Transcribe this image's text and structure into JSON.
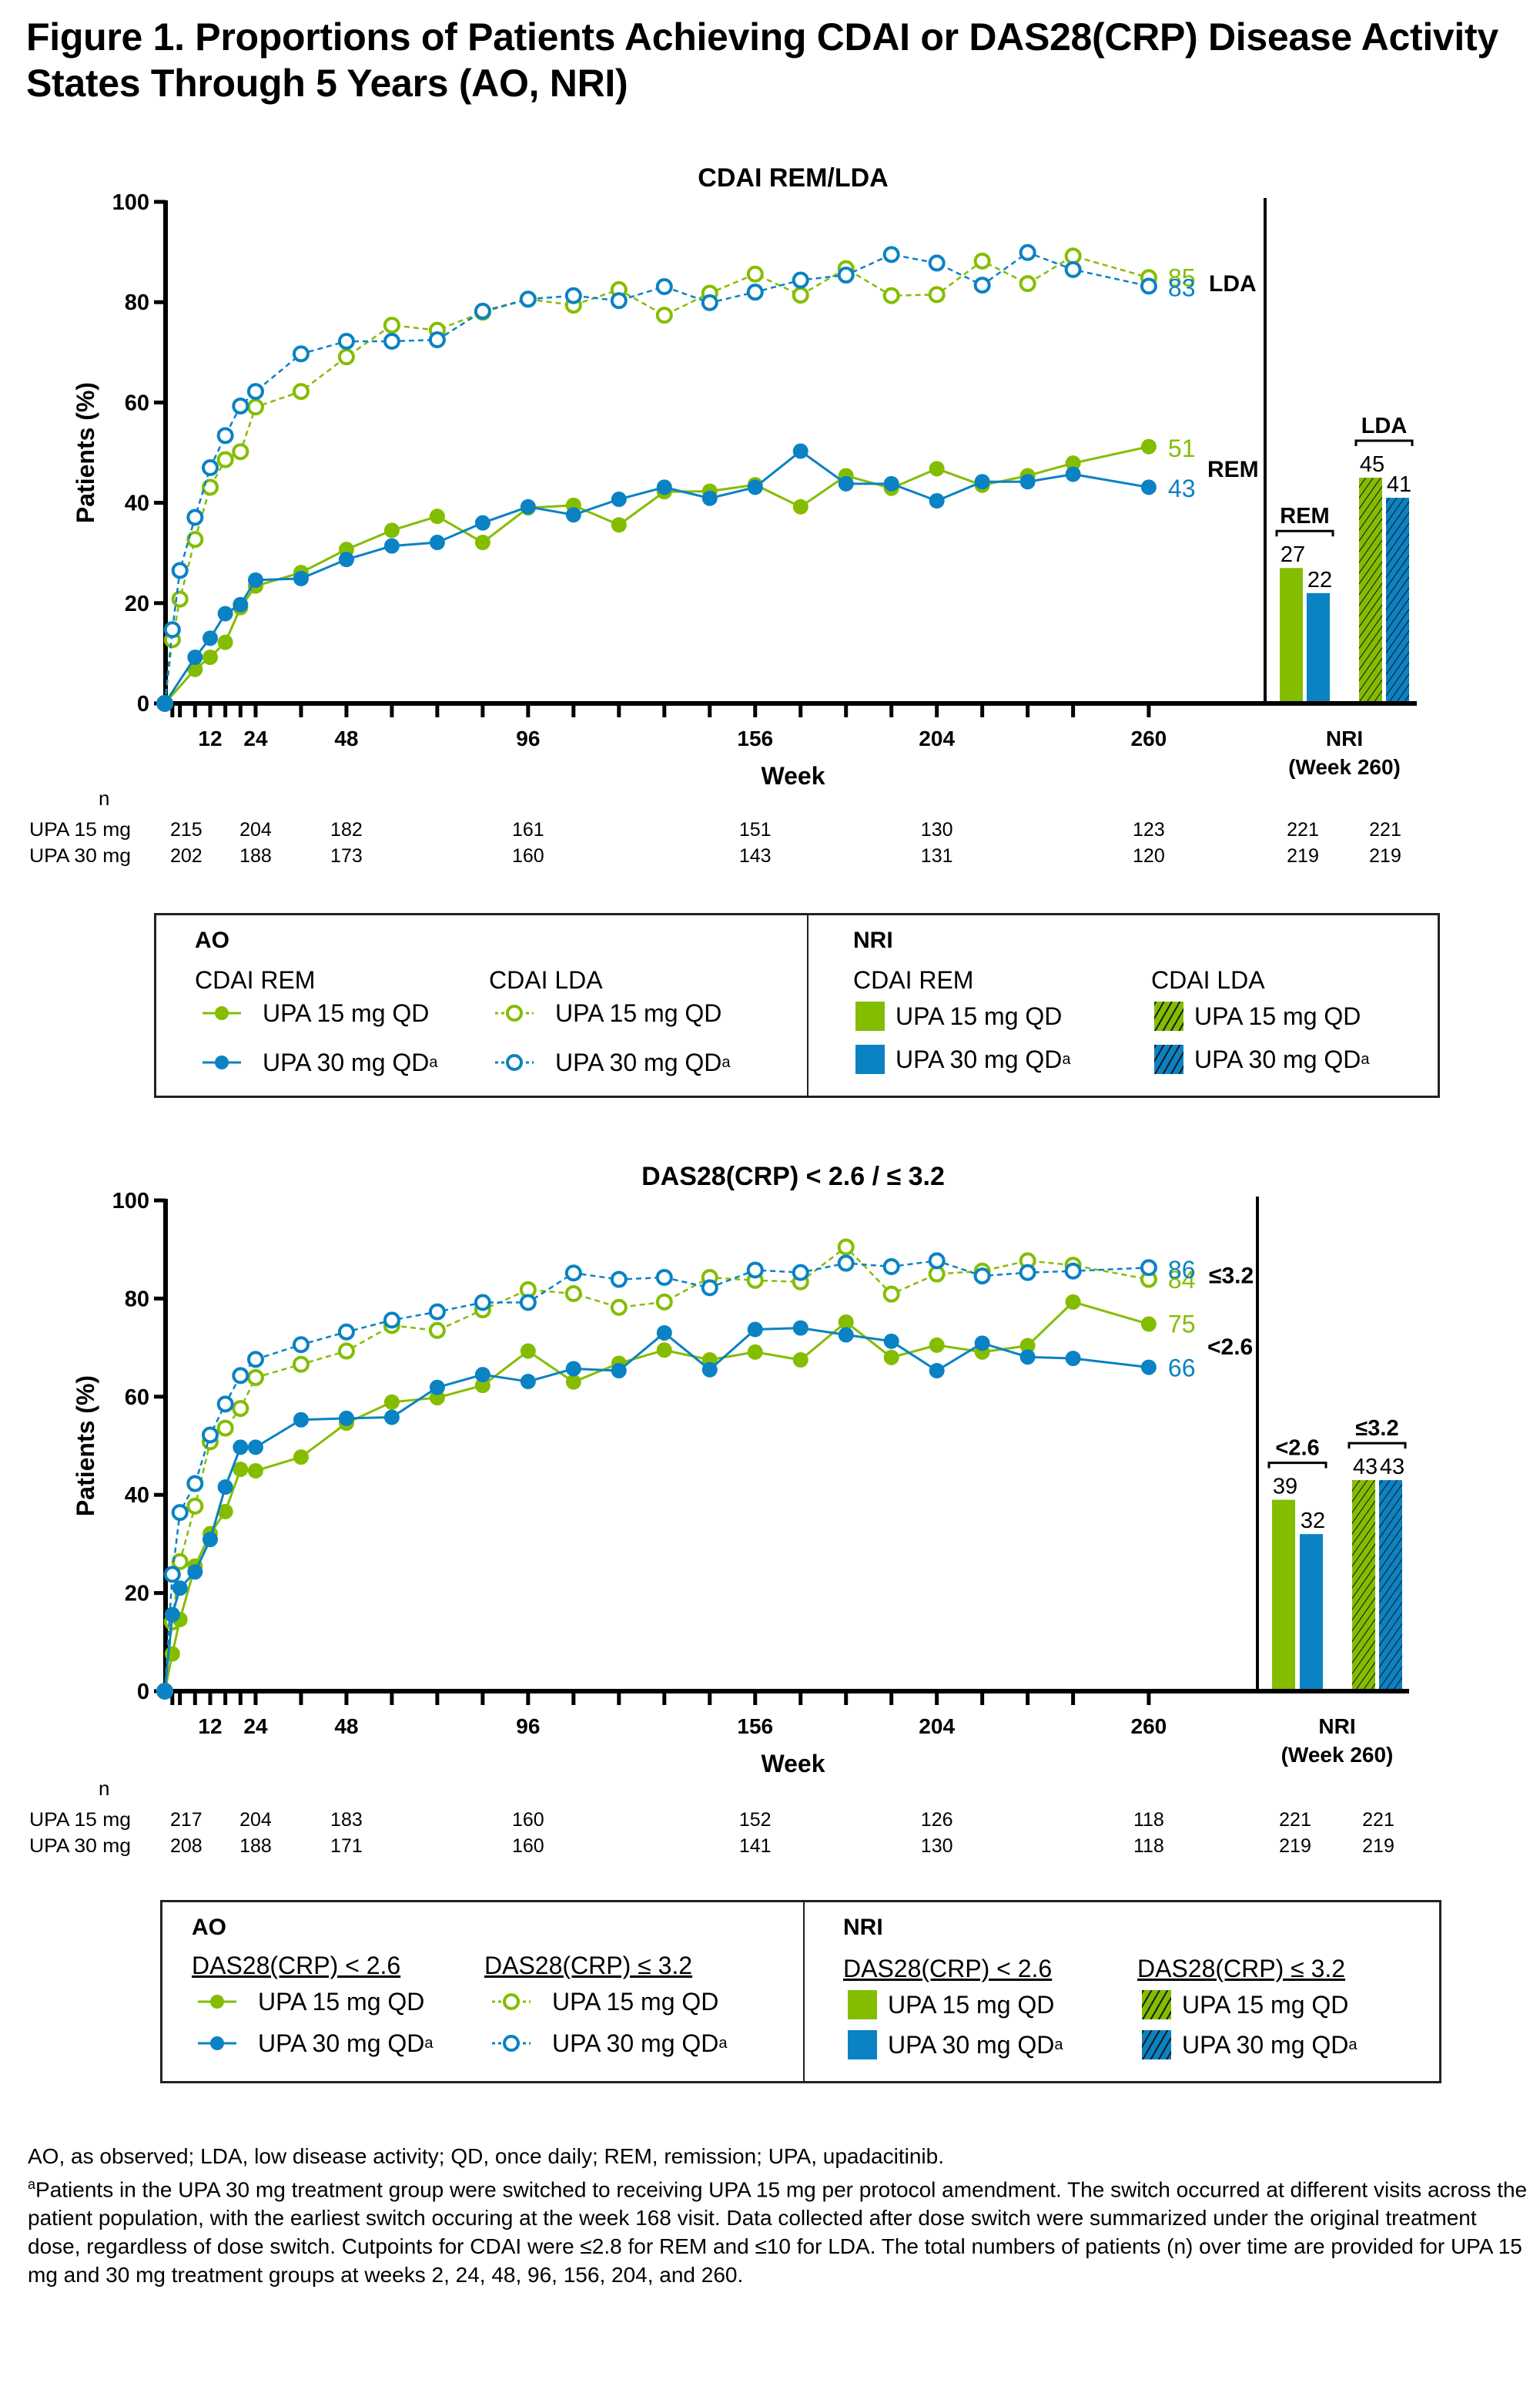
{
  "figure_title": "Figure 1. Proportions of Patients Achieving CDAI or DAS28(CRP) Disease Activity States Through 5 Years (AO, NRI)",
  "colors": {
    "upa15": "#84BD00",
    "upa30": "#0A82C3",
    "axis": "#000000"
  },
  "chart_data": [
    {
      "type": "line",
      "title": "CDAI REM/LDA",
      "xlabel": "Week",
      "ylabel": "Patients (%)",
      "ylim": [
        0,
        100
      ],
      "yticks": [
        "0",
        "20",
        "40",
        "60",
        "80",
        "100"
      ],
      "xticks": [
        12,
        24,
        48,
        96,
        156,
        204,
        260
      ],
      "xlim": [
        0,
        260
      ],
      "grid": false,
      "x": [
        0,
        2,
        4,
        8,
        12,
        16,
        20,
        24,
        36,
        48,
        60,
        72,
        84,
        96,
        108,
        120,
        132,
        144,
        156,
        168,
        180,
        192,
        204,
        216,
        228,
        240,
        260
      ],
      "series": [
        {
          "name": "CDAI LDA UPA 15 mg QD",
          "group": "LDA",
          "dose": "upa15",
          "style": "dashed-open",
          "values": [
            0,
            12.7,
            20.8,
            32.7,
            43.1,
            48.6,
            50.2,
            59.1,
            62.2,
            69.1,
            75.4,
            74.4,
            78.0,
            80.6,
            79.4,
            82.5,
            77.4,
            81.8,
            85.6,
            81.4,
            86.7,
            81.3,
            81.5,
            88.2,
            83.7,
            89.2,
            84.9
          ],
          "end_label": "85"
        },
        {
          "name": "CDAI LDA UPA 30 mg QD",
          "group": "LDA",
          "dose": "upa30",
          "style": "dashed-open",
          "values": [
            0,
            14.7,
            26.5,
            37.1,
            47.0,
            53.4,
            59.3,
            62.2,
            69.7,
            72.2,
            72.2,
            72.5,
            78.2,
            80.6,
            81.3,
            80.3,
            83.1,
            79.9,
            82.0,
            84.4,
            85.4,
            89.5,
            87.8,
            83.4,
            89.9,
            86.5,
            83.2
          ],
          "end_label": "83"
        },
        {
          "name": "CDAI REM UPA 15 mg QD",
          "group": "REM",
          "dose": "upa15",
          "style": "solid-filled",
          "values": [
            0,
            null,
            null,
            6.8,
            9.2,
            12.2,
            19.1,
            23.4,
            26.1,
            30.7,
            34.5,
            37.3,
            32.1,
            39.0,
            39.5,
            35.6,
            42.2,
            42.3,
            43.6,
            39.2,
            45.4,
            42.9,
            46.8,
            43.5,
            45.4,
            47.9,
            51.2
          ],
          "end_label": "51"
        },
        {
          "name": "CDAI REM UPA 30 mg QD",
          "group": "REM",
          "dose": "upa30",
          "style": "solid-filled",
          "values": [
            0,
            null,
            null,
            9.2,
            13.0,
            17.9,
            19.7,
            24.6,
            24.9,
            28.7,
            31.4,
            32.1,
            36.0,
            39.2,
            37.6,
            40.7,
            43.1,
            40.9,
            43.1,
            50.3,
            43.8,
            43.8,
            40.4,
            44.2,
            44.2,
            45.7,
            43.1
          ],
          "end_label": "43"
        }
      ],
      "group_labels": {
        "upper": "LDA",
        "lower": "REM"
      },
      "nri": {
        "label": "NRI",
        "sublabel": "(Week 260)",
        "groups": [
          {
            "label": "REM",
            "bars": [
              {
                "dose": "upa15",
                "value": 27,
                "hatched": false
              },
              {
                "dose": "upa30",
                "value": 22,
                "hatched": false
              }
            ]
          },
          {
            "label": "LDA",
            "bars": [
              {
                "dose": "upa15",
                "value": 45,
                "hatched": true
              },
              {
                "dose": "upa30",
                "value": 41,
                "hatched": true
              }
            ]
          }
        ]
      },
      "n_table": {
        "header": "n",
        "weeks": [
          2,
          24,
          48,
          96,
          156,
          204,
          260
        ],
        "rows": [
          {
            "label": "UPA 15 mg",
            "values": [
              "215",
              "204",
              "182",
              "161",
              "151",
              "130",
              "123"
            ],
            "nri": [
              "221",
              "221"
            ]
          },
          {
            "label": "UPA 30 mg",
            "values": [
              "202",
              "188",
              "173",
              "160",
              "143",
              "131",
              "120"
            ],
            "nri": [
              "219",
              "219"
            ]
          }
        ]
      },
      "legend": {
        "ao_title": "AO",
        "nri_title": "NRI",
        "ao_col1": "CDAI REM",
        "ao_col2": "CDAI LDA",
        "nri_col1": "CDAI REM",
        "nri_col2": "CDAI LDA",
        "upa15": "UPA 15 mg QD",
        "upa30": "UPA 30 mg QD",
        "upa30_sup": "a",
        "underline": false
      }
    },
    {
      "type": "line",
      "title": "DAS28(CRP) < 2.6 / ≤ 3.2",
      "xlabel": "Week",
      "ylabel": "Patients (%)",
      "ylim": [
        0,
        100
      ],
      "yticks": [
        "0",
        "20",
        "40",
        "60",
        "80",
        "100"
      ],
      "xticks": [
        12,
        24,
        48,
        96,
        156,
        204,
        260
      ],
      "xlim": [
        0,
        260
      ],
      "grid": false,
      "x": [
        0,
        2,
        4,
        8,
        12,
        16,
        20,
        24,
        36,
        48,
        60,
        72,
        84,
        96,
        108,
        120,
        132,
        144,
        156,
        168,
        180,
        192,
        204,
        216,
        228,
        240,
        260
      ],
      "series": [
        {
          "name": "DAS28(CRP) ≤ 3.2 UPA 15 mg QD",
          "group": "le3.2",
          "dose": "upa15",
          "style": "dashed-open",
          "values": [
            0,
            14.1,
            26.4,
            37.7,
            50.8,
            53.6,
            57.6,
            63.9,
            66.6,
            69.3,
            74.5,
            73.5,
            77.7,
            81.8,
            81.0,
            78.2,
            79.3,
            84.3,
            83.7,
            83.4,
            90.5,
            80.9,
            85.0,
            85.6,
            87.7,
            86.8,
            83.9
          ],
          "end_label": "84"
        },
        {
          "name": "DAS28(CRP) ≤ 3.2 UPA 30 mg QD",
          "group": "le3.2",
          "dose": "upa30",
          "style": "dashed-open",
          "values": [
            0,
            23.8,
            36.4,
            42.3,
            52.2,
            58.5,
            64.3,
            67.6,
            70.6,
            73.2,
            75.6,
            77.3,
            79.2,
            79.2,
            85.2,
            83.9,
            84.3,
            82.2,
            85.8,
            85.3,
            87.2,
            86.5,
            87.7,
            84.6,
            85.3,
            85.6,
            86.3
          ],
          "end_label": "86"
        },
        {
          "name": "DAS28(CRP) < 2.6 UPA 15 mg QD",
          "group": "lt2.6",
          "dose": "upa15",
          "style": "solid-filled",
          "values": [
            0,
            7.6,
            14.6,
            25.5,
            32.1,
            36.6,
            45.2,
            44.9,
            47.7,
            54.6,
            58.9,
            59.8,
            62.3,
            69.3,
            63.0,
            66.8,
            69.5,
            67.5,
            69.1,
            67.5,
            75.2,
            68.0,
            70.5,
            69.1,
            70.4,
            79.3,
            74.8
          ],
          "end_label": "75"
        },
        {
          "name": "DAS28(CRP) < 2.6 UPA 30 mg QD",
          "group": "lt2.6",
          "dose": "upa30",
          "style": "solid-filled",
          "values": [
            0,
            15.6,
            21.0,
            24.3,
            30.9,
            41.6,
            49.7,
            49.7,
            55.3,
            55.6,
            55.8,
            61.9,
            64.5,
            63.1,
            65.7,
            65.3,
            73.0,
            65.5,
            73.7,
            74.0,
            72.6,
            71.3,
            65.3,
            70.9,
            68.1,
            67.8,
            66.0
          ],
          "end_label": "66"
        }
      ],
      "group_labels": {
        "upper": "≤3.2",
        "lower": "<2.6"
      },
      "nri": {
        "label": "NRI",
        "sublabel": "(Week 260)",
        "groups": [
          {
            "label": "<2.6",
            "bars": [
              {
                "dose": "upa15",
                "value": 39,
                "hatched": false
              },
              {
                "dose": "upa30",
                "value": 32,
                "hatched": false
              }
            ]
          },
          {
            "label": "≤3.2",
            "bars": [
              {
                "dose": "upa15",
                "value": 43,
                "hatched": true
              },
              {
                "dose": "upa30",
                "value": 43,
                "hatched": true
              }
            ]
          }
        ]
      },
      "n_table": {
        "header": "n",
        "weeks": [
          2,
          24,
          48,
          96,
          156,
          204,
          260
        ],
        "rows": [
          {
            "label": "UPA 15 mg",
            "values": [
              "217",
              "204",
              "183",
              "160",
              "152",
              "126",
              "118"
            ],
            "nri": [
              "221",
              "221"
            ]
          },
          {
            "label": "UPA 30 mg",
            "values": [
              "208",
              "188",
              "171",
              "160",
              "141",
              "130",
              "118"
            ],
            "nri": [
              "219",
              "219"
            ]
          }
        ]
      },
      "legend": {
        "ao_title": "AO",
        "nri_title": "NRI",
        "ao_col1": "DAS28(CRP) < 2.6",
        "ao_col2": "DAS28(CRP) ≤ 3.2",
        "nri_col1": "DAS28(CRP) < 2.6",
        "nri_col2": "DAS28(CRP) ≤ 3.2",
        "upa15": "UPA 15 mg QD",
        "upa30": "UPA 30 mg QD",
        "upa30_sup": "a",
        "underline": true
      }
    }
  ],
  "footnotes": {
    "abbreviations": "AO, as observed; LDA, low disease activity; QD, once daily; REM, remission; UPA, upadacitinib.",
    "note_marker": "a",
    "note": "Patients in the UPA 30 mg treatment group were switched to receiving UPA 15 mg per protocol amendment. The switch occurred at different visits across the patient population, with the earliest switch occuring at the week 168 visit. Data collected after dose switch were summarized under the original treatment dose, regardless of dose switch. Cutpoints for CDAI were ≤2.8 for REM and ≤10 for LDA. The total numbers of patients (n) over time are provided for UPA 15 mg and 30 mg treatment groups at weeks 2, 24, 48, 96, 156, 204, and 260."
  }
}
